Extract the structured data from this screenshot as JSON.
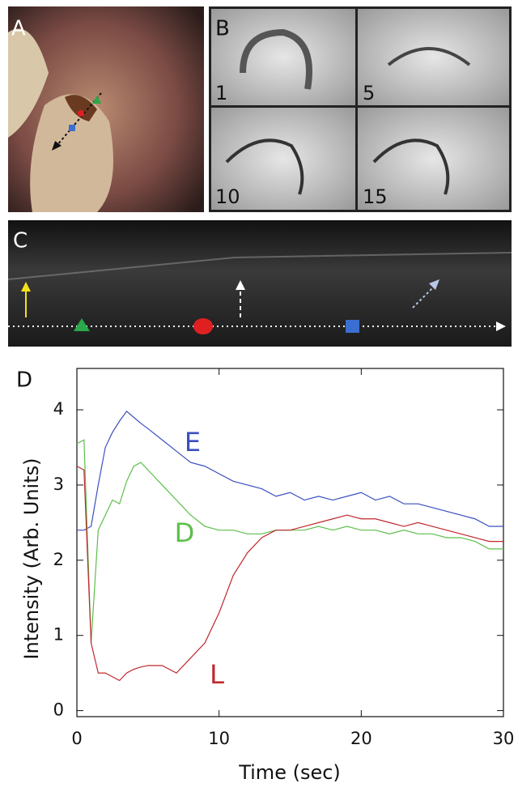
{
  "panel_labels": [
    "A",
    "B",
    "C",
    "D"
  ],
  "frame_labels": [
    "1",
    "5",
    "10",
    "15"
  ],
  "chart_data": {
    "type": "line",
    "x_label": "Time (sec)",
    "y_label": "Intensity (Arb. Units)",
    "x": [
      0,
      0.5,
      1,
      1.5,
      2,
      2.5,
      3,
      3.5,
      4,
      4.5,
      5,
      6,
      7,
      8,
      9,
      10,
      11,
      12,
      13,
      14,
      15,
      16,
      17,
      18,
      19,
      20,
      21,
      22,
      23,
      24,
      25,
      26,
      27,
      28,
      29,
      30
    ],
    "series": [
      {
        "name": "E",
        "color": "#3a4fc0",
        "values": [
          2.4,
          2.4,
          2.45,
          3.0,
          3.5,
          3.7,
          3.85,
          3.98,
          3.9,
          3.82,
          3.75,
          3.6,
          3.45,
          3.3,
          3.25,
          3.15,
          3.05,
          3.0,
          2.95,
          2.85,
          2.9,
          2.8,
          2.85,
          2.8,
          2.85,
          2.9,
          2.8,
          2.85,
          2.75,
          2.75,
          2.7,
          2.65,
          2.6,
          2.55,
          2.45,
          2.45
        ]
      },
      {
        "name": "D",
        "color": "#5cbf4a",
        "values": [
          3.55,
          3.6,
          0.9,
          2.4,
          2.6,
          2.8,
          2.75,
          3.05,
          3.25,
          3.3,
          3.2,
          3.0,
          2.8,
          2.6,
          2.45,
          2.4,
          2.4,
          2.35,
          2.35,
          2.4,
          2.4,
          2.4,
          2.45,
          2.4,
          2.45,
          2.4,
          2.4,
          2.35,
          2.4,
          2.35,
          2.35,
          2.3,
          2.3,
          2.25,
          2.15,
          2.15
        ]
      },
      {
        "name": "L",
        "color": "#c0282e",
        "values": [
          3.25,
          3.2,
          0.9,
          0.5,
          0.5,
          0.45,
          0.4,
          0.5,
          0.55,
          0.58,
          0.6,
          0.6,
          0.5,
          0.7,
          0.9,
          1.3,
          1.8,
          2.1,
          2.3,
          2.4,
          2.4,
          2.45,
          2.5,
          2.55,
          2.6,
          2.55,
          2.55,
          2.5,
          2.45,
          2.5,
          2.45,
          2.4,
          2.35,
          2.3,
          2.25,
          2.25
        ]
      }
    ],
    "xlim": [
      0,
      30
    ],
    "ylim": [
      -0.08,
      4.55
    ],
    "xticks": [
      0,
      10,
      20,
      30
    ],
    "yticks": [
      0,
      1,
      2,
      3,
      4
    ]
  }
}
